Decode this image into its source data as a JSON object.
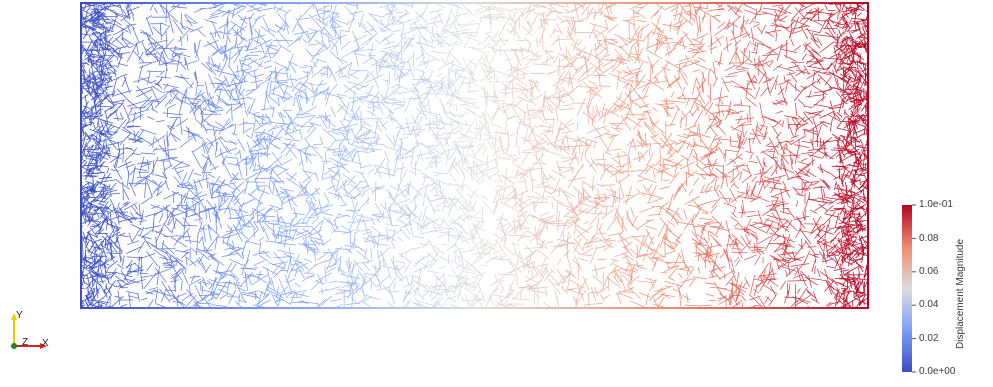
{
  "scene": {
    "render_type": "wireframe mesh",
    "colormap": "Cool to Warm",
    "colormap_low": "#3b4cc0",
    "colormap_mid": "#dddddd",
    "colormap_high": "#b40426",
    "background": "#ffffff",
    "field": "Displacement Magnitude",
    "value_range": [
      0.0,
      0.1
    ]
  },
  "colorbar": {
    "title": "Displacement Magnitude",
    "ticks": [
      {
        "label": "1.0e-01",
        "value": 0.1
      },
      {
        "label": "0.08",
        "value": 0.08
      },
      {
        "label": "0.06",
        "value": 0.06
      },
      {
        "label": "0.04",
        "value": 0.04
      },
      {
        "label": "0.02",
        "value": 0.02
      },
      {
        "label": "0.0e+00",
        "value": 0.0
      }
    ]
  },
  "orientation_axes": {
    "y_label": "Y",
    "z_label": "Z",
    "x_label": "X",
    "y_color": "#e8d000",
    "z_color": "#1c8a1c",
    "x_color": "#d42020"
  }
}
